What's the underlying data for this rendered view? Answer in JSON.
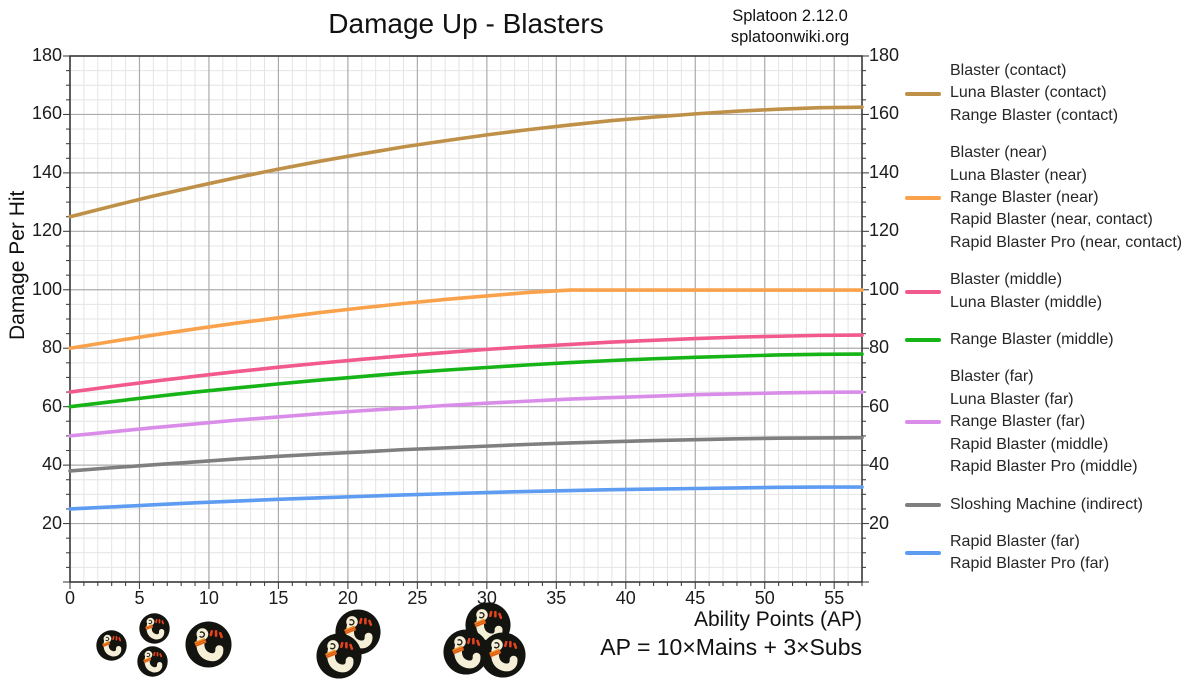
{
  "header": {
    "title": "Damage Up - Blasters",
    "annotation_line1": "Splatoon 2.12.0",
    "annotation_line2": "splatoonwiki.org"
  },
  "chart_data": {
    "type": "line",
    "title": "Damage Up - Blasters",
    "xlabel": "Ability Points (AP)",
    "xlabel_note": "AP = 10×Mains + 3×Subs",
    "ylabel": "Damage Per Hit",
    "xlim": [
      0,
      57
    ],
    "ylim": [
      0,
      180
    ],
    "x_major_ticks": [
      0,
      5,
      10,
      15,
      20,
      25,
      30,
      35,
      40,
      45,
      50,
      55
    ],
    "x_minor_step": 1,
    "y_major_ticks": [
      20,
      40,
      60,
      80,
      100,
      120,
      140,
      160,
      180
    ],
    "y_minor_step": 5,
    "grid": true,
    "legend_position": "right",
    "x": [
      0,
      3,
      6,
      9,
      12,
      15,
      18,
      21,
      24,
      27,
      30,
      33,
      36,
      39,
      42,
      45,
      48,
      51,
      54,
      57
    ],
    "series": [
      {
        "name": "Blaster / Luna Blaster / Range Blaster (contact)",
        "color": "#BF9048",
        "base_damage": 125,
        "max_damage": 162.5,
        "values": [
          125,
          128.6,
          132.1,
          135.3,
          138.4,
          141.3,
          144.0,
          146.5,
          148.9,
          151.0,
          153.0,
          154.8,
          156.4,
          157.9,
          159.1,
          160.2,
          161.1,
          161.8,
          162.3,
          162.5
        ]
      },
      {
        "name": "Blaster / Luna Blaster / Range Blaster (near), Rapid Blaster / Rapid Blaster Pro (near, contact)",
        "color": "#F9A24B",
        "base_damage": 80,
        "max_damage": 99.9,
        "values": [
          80,
          82.3,
          84.5,
          86.6,
          88.6,
          90.4,
          92.2,
          93.8,
          95.3,
          96.7,
          97.9,
          99.1,
          99.9,
          99.9,
          99.9,
          99.9,
          99.9,
          99.9,
          99.9,
          99.9
        ]
      },
      {
        "name": "Blaster / Luna Blaster (middle)",
        "color": "#F2598C",
        "base_damage": 65,
        "max_damage": 84.5,
        "values": [
          65,
          66.9,
          68.7,
          70.4,
          72.0,
          73.5,
          74.9,
          76.2,
          77.4,
          78.5,
          79.6,
          80.5,
          81.3,
          82.1,
          82.7,
          83.3,
          83.8,
          84.1,
          84.4,
          84.5
        ]
      },
      {
        "name": "Range Blaster (middle)",
        "color": "#16B416",
        "base_damage": 60,
        "max_damage": 78,
        "values": [
          60,
          61.7,
          63.4,
          65.0,
          66.4,
          67.8,
          69.1,
          70.3,
          71.5,
          72.5,
          73.4,
          74.3,
          75.1,
          75.8,
          76.4,
          76.9,
          77.3,
          77.7,
          77.9,
          78.0
        ]
      },
      {
        "name": "Blaster / Luna Blaster / Range Blaster (far), Rapid Blaster / Rapid Blaster Pro (middle)",
        "color": "#D98DE8",
        "base_damage": 50,
        "max_damage": 65,
        "values": [
          50,
          51.4,
          52.8,
          54.1,
          55.4,
          56.5,
          57.6,
          58.6,
          59.5,
          60.4,
          61.2,
          61.9,
          62.6,
          63.1,
          63.6,
          64.1,
          64.4,
          64.7,
          64.9,
          65.0
        ]
      },
      {
        "name": "Sloshing Machine (indirect)",
        "color": "#7F7F7F",
        "base_damage": 38,
        "max_damage": 49.4,
        "values": [
          38,
          39.1,
          40.1,
          41.1,
          42.1,
          43.0,
          43.8,
          44.5,
          45.3,
          45.9,
          46.5,
          47.1,
          47.6,
          48.0,
          48.4,
          48.7,
          49.0,
          49.2,
          49.3,
          49.4
        ]
      },
      {
        "name": "Rapid Blaster / Rapid Blaster Pro (far)",
        "color": "#5E9CF2",
        "base_damage": 25,
        "max_damage": 32.5,
        "values": [
          25,
          25.7,
          26.4,
          27.1,
          27.7,
          28.3,
          28.8,
          29.3,
          29.8,
          30.2,
          30.6,
          31.0,
          31.3,
          31.6,
          31.8,
          32.0,
          32.2,
          32.4,
          32.5,
          32.5
        ]
      }
    ]
  },
  "legend": {
    "groups": [
      {
        "color": "#BF9048",
        "labels": [
          "Blaster (contact)",
          "Luna Blaster (contact)",
          "Range Blaster (contact)"
        ]
      },
      {
        "color": "#F9A24B",
        "labels": [
          "Blaster (near)",
          "Luna Blaster (near)",
          "Range Blaster (near)",
          "Rapid Blaster (near, contact)",
          "Rapid Blaster Pro (near, contact)"
        ]
      },
      {
        "color": "#F2598C",
        "labels": [
          "Blaster (middle)",
          "Luna Blaster (middle)"
        ]
      },
      {
        "color": "#16B416",
        "labels": [
          "Range Blaster (middle)"
        ]
      },
      {
        "color": "#D98DE8",
        "labels": [
          "Blaster (far)",
          "Luna Blaster (far)",
          "Range Blaster (far)",
          "Rapid Blaster (middle)",
          "Rapid Blaster Pro (middle)"
        ]
      },
      {
        "color": "#7F7F7F",
        "labels": [
          "Sloshing Machine (indirect)"
        ]
      },
      {
        "color": "#5E9CF2",
        "labels": [
          "Rapid Blaster (far)",
          "Rapid Blaster Pro (far)"
        ]
      }
    ]
  },
  "ability_icons": {
    "name": "damage-up-ability-icon",
    "markers": [
      {
        "ap": 3,
        "size": "small",
        "count": 1
      },
      {
        "ap": 6,
        "size": "small",
        "count": 2
      },
      {
        "ap": 10,
        "size": "large",
        "count": 1
      },
      {
        "ap": 20,
        "size": "large",
        "count": 2
      },
      {
        "ap": 30,
        "size": "large",
        "count": 3
      }
    ]
  }
}
